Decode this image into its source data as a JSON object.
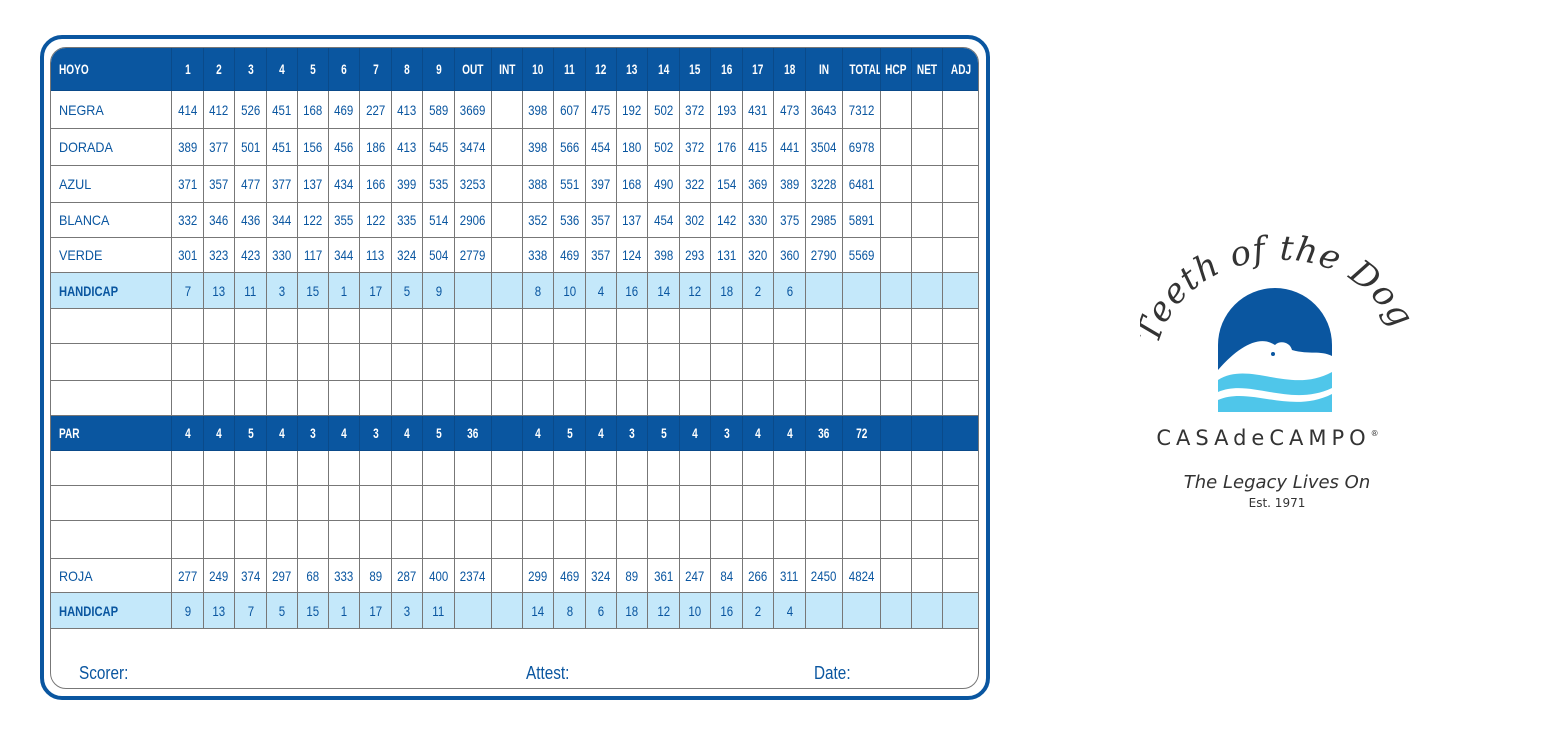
{
  "scorecard": {
    "header": {
      "label": "HOYO",
      "holes_out": [
        "1",
        "2",
        "3",
        "4",
        "5",
        "6",
        "7",
        "8",
        "9"
      ],
      "out": "OUT",
      "int": "INT",
      "holes_in": [
        "10",
        "11",
        "12",
        "13",
        "14",
        "15",
        "16",
        "17",
        "18"
      ],
      "in": "IN",
      "total": "TOTAL",
      "hcp": "HCP",
      "net": "NET",
      "adj": "ADJ"
    },
    "rows": [
      {
        "type": "tee",
        "label": "NEGRA",
        "holes_out": [
          "414",
          "412",
          "526",
          "451",
          "168",
          "469",
          "227",
          "413",
          "589"
        ],
        "out": "3669",
        "holes_in": [
          "398",
          "607",
          "475",
          "192",
          "502",
          "372",
          "193",
          "431",
          "473"
        ],
        "in": "3643",
        "total": "7312"
      },
      {
        "type": "tee",
        "label": "DORADA",
        "holes_out": [
          "389",
          "377",
          "501",
          "451",
          "156",
          "456",
          "186",
          "413",
          "545"
        ],
        "out": "3474",
        "holes_in": [
          "398",
          "566",
          "454",
          "180",
          "502",
          "372",
          "176",
          "415",
          "441"
        ],
        "in": "3504",
        "total": "6978"
      },
      {
        "type": "tee",
        "label": "AZUL",
        "holes_out": [
          "371",
          "357",
          "477",
          "377",
          "137",
          "434",
          "166",
          "399",
          "535"
        ],
        "out": "3253",
        "holes_in": [
          "388",
          "551",
          "397",
          "168",
          "490",
          "322",
          "154",
          "369",
          "389"
        ],
        "in": "3228",
        "total": "6481"
      },
      {
        "type": "tee",
        "label": "BLANCA",
        "holes_out": [
          "332",
          "346",
          "436",
          "344",
          "122",
          "355",
          "122",
          "335",
          "514"
        ],
        "out": "2906",
        "holes_in": [
          "352",
          "536",
          "357",
          "137",
          "454",
          "302",
          "142",
          "330",
          "375"
        ],
        "in": "2985",
        "total": "5891"
      },
      {
        "type": "tee",
        "label": "VERDE",
        "holes_out": [
          "301",
          "323",
          "423",
          "330",
          "117",
          "344",
          "113",
          "324",
          "504"
        ],
        "out": "2779",
        "holes_in": [
          "338",
          "469",
          "357",
          "124",
          "398",
          "293",
          "131",
          "320",
          "360"
        ],
        "in": "2790",
        "total": "5569"
      },
      {
        "type": "hcp",
        "label": "HANDICAP",
        "holes_out": [
          "7",
          "13",
          "11",
          "3",
          "15",
          "1",
          "17",
          "5",
          "9"
        ],
        "out": "",
        "holes_in": [
          "8",
          "10",
          "4",
          "16",
          "14",
          "12",
          "18",
          "2",
          "6"
        ],
        "in": "",
        "total": ""
      },
      {
        "type": "blank"
      },
      {
        "type": "blank"
      },
      {
        "type": "blank"
      },
      {
        "type": "par",
        "label": "PAR",
        "holes_out": [
          "4",
          "4",
          "5",
          "4",
          "3",
          "4",
          "3",
          "4",
          "5"
        ],
        "out": "36",
        "holes_in": [
          "4",
          "5",
          "4",
          "3",
          "5",
          "4",
          "3",
          "4",
          "4"
        ],
        "in": "36",
        "total": "72"
      },
      {
        "type": "blank"
      },
      {
        "type": "blank"
      },
      {
        "type": "blank"
      },
      {
        "type": "tee",
        "label": "ROJA",
        "holes_out": [
          "277",
          "249",
          "374",
          "297",
          "68",
          "333",
          "89",
          "287",
          "400"
        ],
        "out": "2374",
        "holes_in": [
          "299",
          "469",
          "324",
          "89",
          "361",
          "247",
          "84",
          "266",
          "311"
        ],
        "in": "2450",
        "total": "4824"
      },
      {
        "type": "hcp",
        "label": "HANDICAP",
        "holes_out": [
          "9",
          "13",
          "7",
          "5",
          "15",
          "1",
          "17",
          "3",
          "11"
        ],
        "out": "",
        "holes_in": [
          "14",
          "8",
          "6",
          "18",
          "12",
          "10",
          "16",
          "2",
          "4"
        ],
        "in": "",
        "total": ""
      }
    ],
    "footer": {
      "scorer": "Scorer:",
      "attest": "Attest:",
      "date": "Date:"
    }
  },
  "logo": {
    "course_name": "Teeth of the Dog",
    "brand": "CASAdeCAMPO",
    "registered": "®",
    "tagline": "The Legacy Lives On",
    "established": "Est. 1971"
  },
  "colors": {
    "primary": "#0a56a0",
    "handicap_row": "#c4e8fa",
    "wave": "#4fc6ea"
  }
}
